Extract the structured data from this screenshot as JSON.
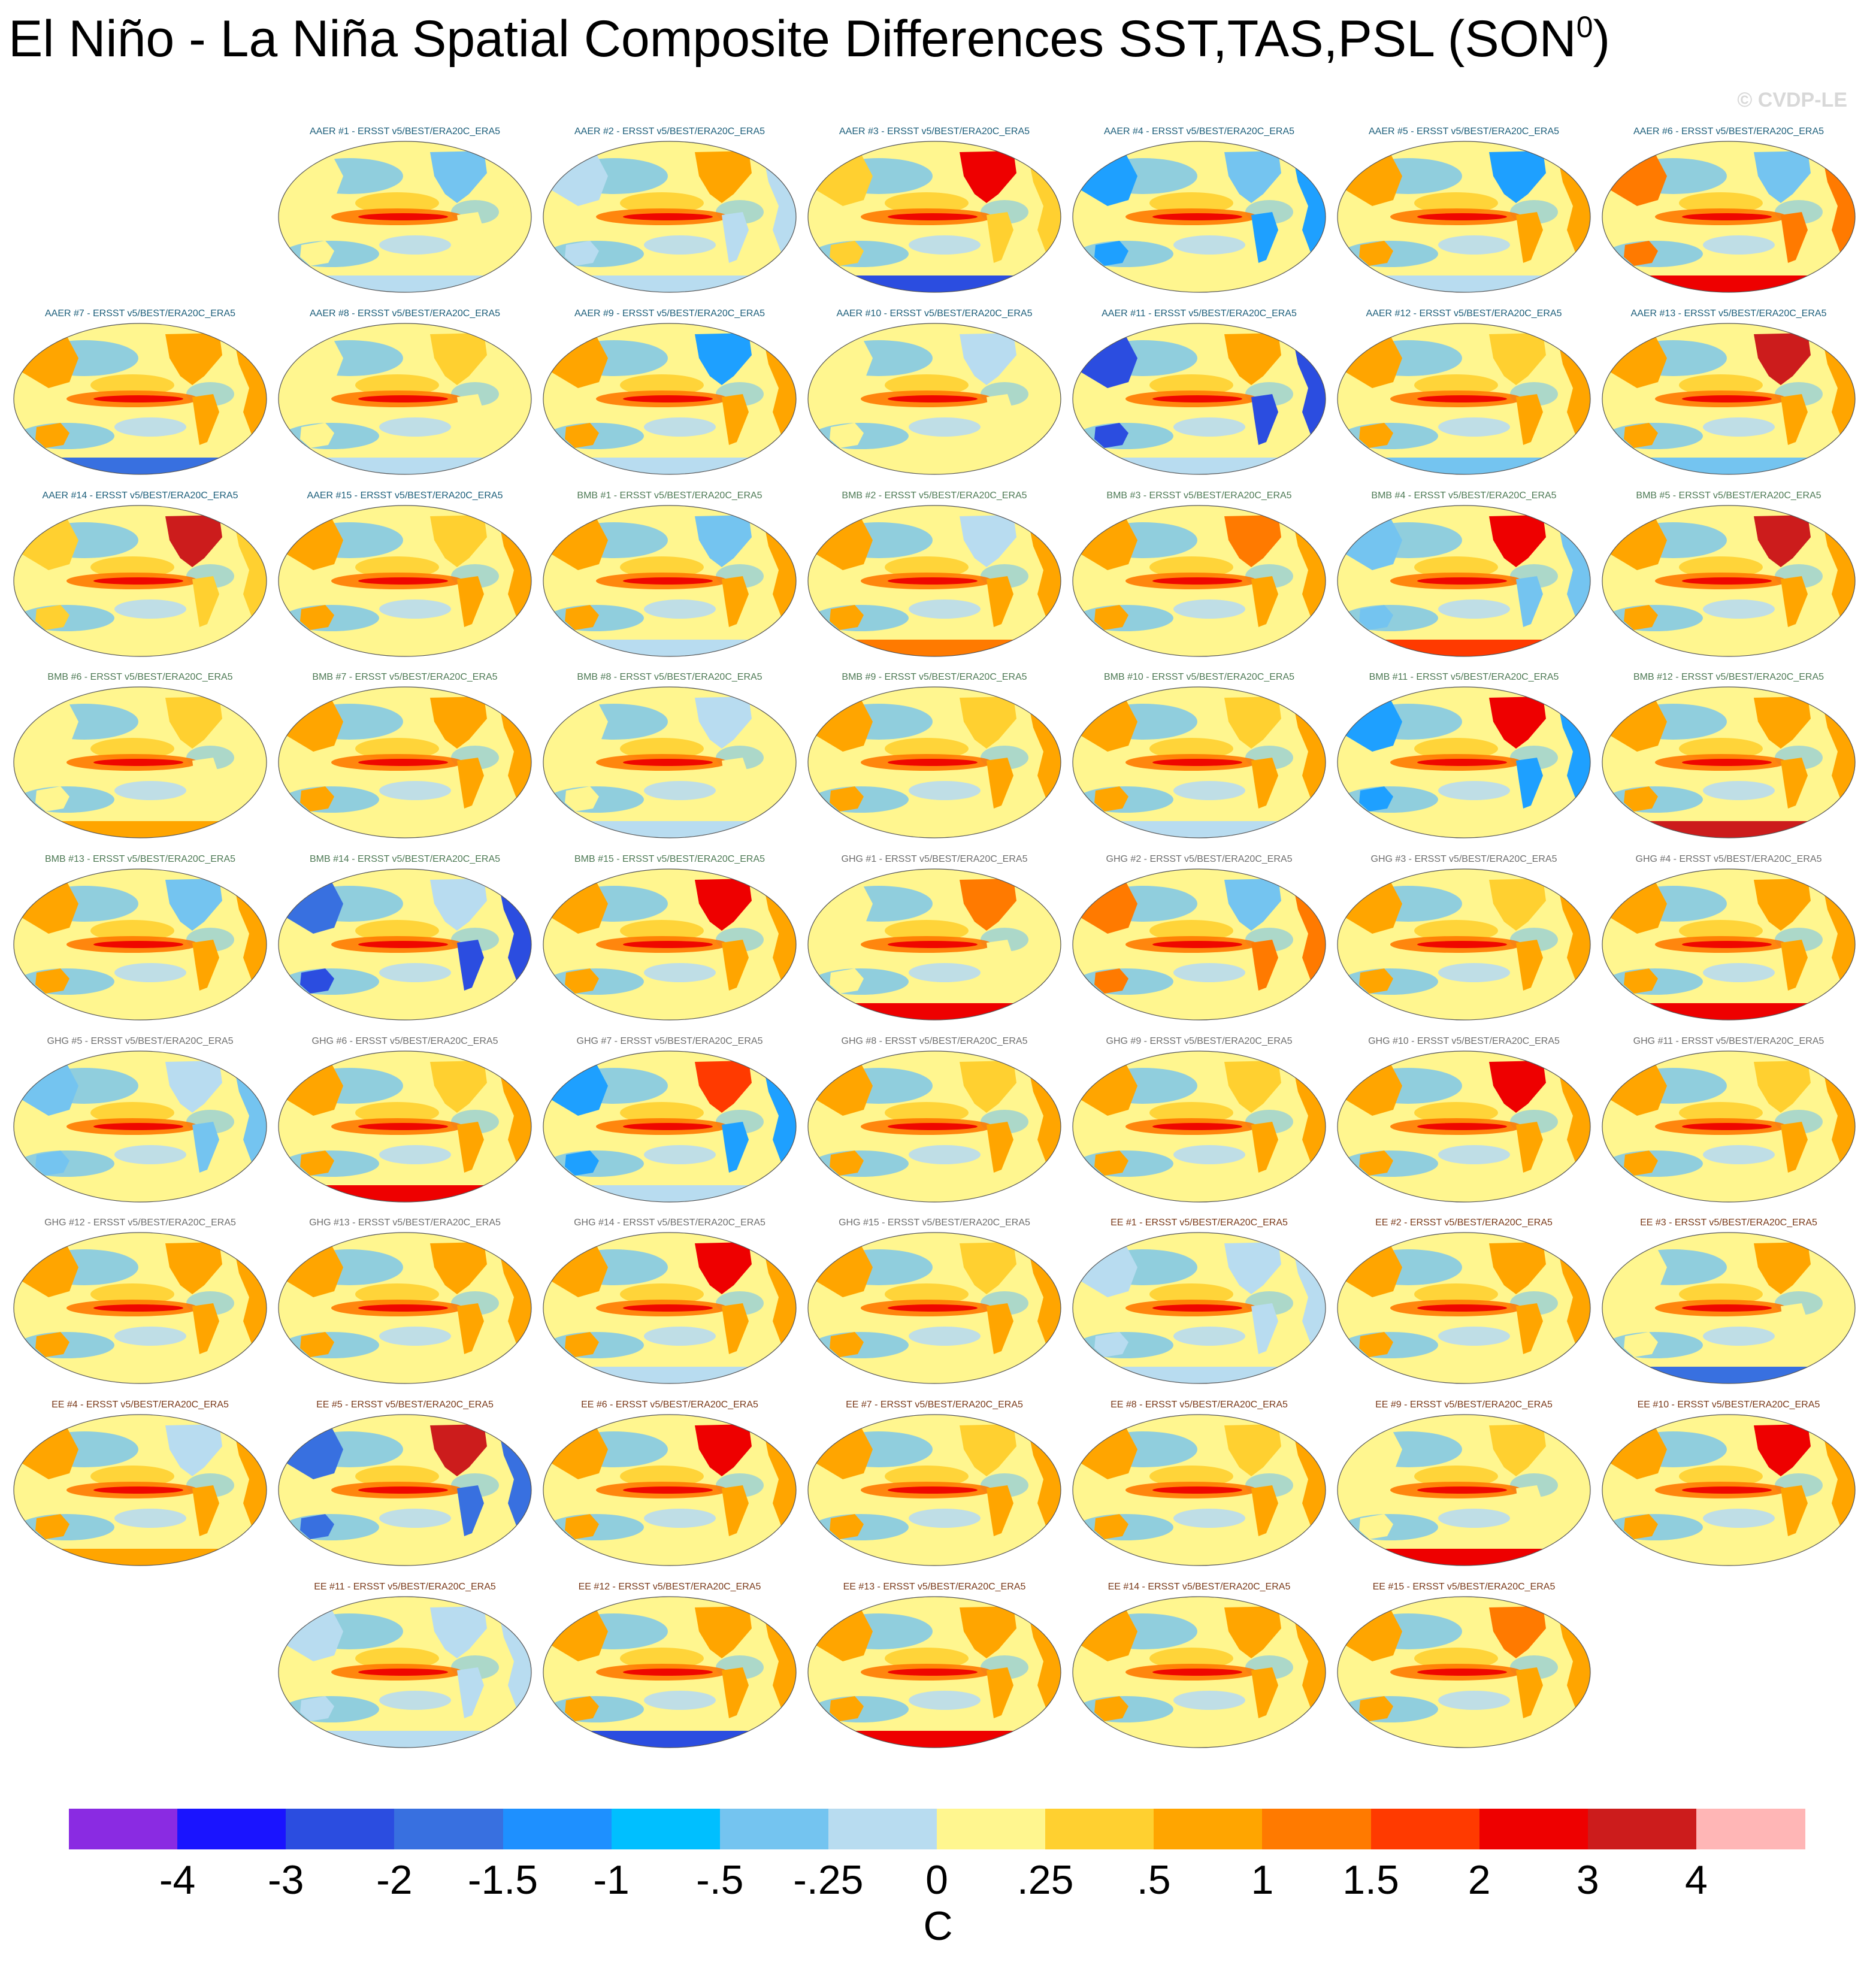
{
  "title": {
    "main": "El Niño - La Niña Spatial Composite Differences SST,TAS,PSL (SON",
    "superscript": "0",
    "close": ")"
  },
  "copyright": "© CVDP-LE",
  "group_colors": {
    "AAER": "#1c5e7a",
    "BMB": "#4e7a55",
    "GHG": "#6e6e6e",
    "EE": "#7a3a1a"
  },
  "panels": [
    {
      "label": "AAER #1 - ERSST v5/BEST/ERA20C_ERA5",
      "group": "AAER",
      "land": "#fff68f",
      "north": "#74c4f0",
      "south": "#b8dcf0",
      "asia": "#fff68f"
    },
    {
      "label": "AAER #2 - ERSST v5/BEST/ERA20C_ERA5",
      "group": "AAER",
      "land": "#b8dcf0",
      "north": "#ffa500",
      "south": "#b8dcf0",
      "asia": "#b8dcf0"
    },
    {
      "label": "AAER #3 - ERSST v5/BEST/ERA20C_ERA5",
      "group": "AAER",
      "land": "#ffd030",
      "north": "#ee0000",
      "south": "#2b4de0",
      "asia": "#ffd030"
    },
    {
      "label": "AAER #4 - ERSST v5/BEST/ERA20C_ERA5",
      "group": "AAER",
      "land": "#1ea0ff",
      "north": "#74c4f0",
      "south": "#fff68f",
      "asia": "#1ea0ff"
    },
    {
      "label": "AAER #5 - ERSST v5/BEST/ERA20C_ERA5",
      "group": "AAER",
      "land": "#ffa500",
      "north": "#1ea0ff",
      "south": "#b8dcf0",
      "asia": "#ffa500"
    },
    {
      "label": "AAER #6 - ERSST v5/BEST/ERA20C_ERA5",
      "group": "AAER",
      "land": "#ff7a00",
      "north": "#74c4f0",
      "south": "#ee0000",
      "asia": "#ff7a00"
    },
    {
      "label": "AAER #7 - ERSST v5/BEST/ERA20C_ERA5",
      "group": "AAER",
      "land": "#ffa500",
      "north": "#ffa500",
      "south": "#3870e0",
      "asia": "#ffa500"
    },
    {
      "label": "AAER #8 - ERSST v5/BEST/ERA20C_ERA5",
      "group": "AAER",
      "land": "#fff68f",
      "north": "#ffd030",
      "south": "#b8dcf0",
      "asia": "#fff68f"
    },
    {
      "label": "AAER #9 - ERSST v5/BEST/ERA20C_ERA5",
      "group": "AAER",
      "land": "#ffa500",
      "north": "#1ea0ff",
      "south": "#b8dcf0",
      "asia": "#ffa500"
    },
    {
      "label": "AAER #10 - ERSST v5/BEST/ERA20C_ERA5",
      "group": "AAER",
      "land": "#fff68f",
      "north": "#b8dcf0",
      "south": "#fff68f",
      "asia": "#fff68f"
    },
    {
      "label": "AAER #11 - ERSST v5/BEST/ERA20C_ERA5",
      "group": "AAER",
      "land": "#2b4de0",
      "north": "#ffa500",
      "south": "#b8dcf0",
      "asia": "#2b4de0"
    },
    {
      "label": "AAER #12 - ERSST v5/BEST/ERA20C_ERA5",
      "group": "AAER",
      "land": "#ffa500",
      "north": "#ffd030",
      "south": "#74c4f0",
      "asia": "#ffa500"
    },
    {
      "label": "AAER #13 - ERSST v5/BEST/ERA20C_ERA5",
      "group": "AAER",
      "land": "#ffa500",
      "north": "#cc1c1c",
      "south": "#74c4f0",
      "asia": "#ffa500"
    },
    {
      "label": "AAER #14 - ERSST v5/BEST/ERA20C_ERA5",
      "group": "AAER",
      "land": "#ffd030",
      "north": "#cc1c1c",
      "south": "#fff68f",
      "asia": "#ffd030"
    },
    {
      "label": "AAER #15 - ERSST v5/BEST/ERA20C_ERA5",
      "group": "AAER",
      "land": "#ffa500",
      "north": "#ffd030",
      "south": "#fff68f",
      "asia": "#ffa500"
    },
    {
      "label": "BMB #1 - ERSST v5/BEST/ERA20C_ERA5",
      "group": "BMB",
      "land": "#ffa500",
      "north": "#74c4f0",
      "south": "#b8dcf0",
      "asia": "#ffa500"
    },
    {
      "label": "BMB #2 - ERSST v5/BEST/ERA20C_ERA5",
      "group": "BMB",
      "land": "#ffa500",
      "north": "#b8dcf0",
      "south": "#ff7a00",
      "asia": "#ffa500"
    },
    {
      "label": "BMB #3 - ERSST v5/BEST/ERA20C_ERA5",
      "group": "BMB",
      "land": "#ffa500",
      "north": "#ff7a00",
      "south": "#fff68f",
      "asia": "#ffa500"
    },
    {
      "label": "BMB #4 - ERSST v5/BEST/ERA20C_ERA5",
      "group": "BMB",
      "land": "#74c4f0",
      "north": "#ee0000",
      "south": "#ff3a00",
      "asia": "#74c4f0"
    },
    {
      "label": "BMB #5 - ERSST v5/BEST/ERA20C_ERA5",
      "group": "BMB",
      "land": "#ffa500",
      "north": "#cc1c1c",
      "south": "#fff68f",
      "asia": "#ffa500"
    },
    {
      "label": "BMB #6 - ERSST v5/BEST/ERA20C_ERA5",
      "group": "BMB",
      "land": "#fff68f",
      "north": "#ffd030",
      "south": "#ffa500",
      "asia": "#fff68f"
    },
    {
      "label": "BMB #7 - ERSST v5/BEST/ERA20C_ERA5",
      "group": "BMB",
      "land": "#ffa500",
      "north": "#ffa500",
      "south": "#fff68f",
      "asia": "#ffa500"
    },
    {
      "label": "BMB #8 - ERSST v5/BEST/ERA20C_ERA5",
      "group": "BMB",
      "land": "#fff68f",
      "north": "#b8dcf0",
      "south": "#b8dcf0",
      "asia": "#fff68f"
    },
    {
      "label": "BMB #9 - ERSST v5/BEST/ERA20C_ERA5",
      "group": "BMB",
      "land": "#ffa500",
      "north": "#ffd030",
      "south": "#fff68f",
      "asia": "#ffa500"
    },
    {
      "label": "BMB #10 - ERSST v5/BEST/ERA20C_ERA5",
      "group": "BMB",
      "land": "#ffa500",
      "north": "#ffd030",
      "south": "#b8dcf0",
      "asia": "#ffa500"
    },
    {
      "label": "BMB #11 - ERSST v5/BEST/ERA20C_ERA5",
      "group": "BMB",
      "land": "#1ea0ff",
      "north": "#ee0000",
      "south": "#fff68f",
      "asia": "#1ea0ff"
    },
    {
      "label": "BMB #12 - ERSST v5/BEST/ERA20C_ERA5",
      "group": "BMB",
      "land": "#ffa500",
      "north": "#ffa500",
      "south": "#cc1c1c",
      "asia": "#ffa500"
    },
    {
      "label": "BMB #13 - ERSST v5/BEST/ERA20C_ERA5",
      "group": "BMB",
      "land": "#ffa500",
      "north": "#74c4f0",
      "south": "#fff68f",
      "asia": "#ffa500"
    },
    {
      "label": "BMB #14 - ERSST v5/BEST/ERA20C_ERA5",
      "group": "BMB",
      "land": "#2b4de0",
      "north": "#b8dcf0",
      "south": "#fff68f",
      "asia": "#3870e0"
    },
    {
      "label": "BMB #15 - ERSST v5/BEST/ERA20C_ERA5",
      "group": "BMB",
      "land": "#ffa500",
      "north": "#ee0000",
      "south": "#fff68f",
      "asia": "#ffa500"
    },
    {
      "label": "GHG #1 - ERSST v5/BEST/ERA20C_ERA5",
      "group": "GHG",
      "land": "#fff68f",
      "north": "#ff7a00",
      "south": "#ee0000",
      "asia": "#fff68f"
    },
    {
      "label": "GHG #2 - ERSST v5/BEST/ERA20C_ERA5",
      "group": "GHG",
      "land": "#ff7a00",
      "north": "#74c4f0",
      "south": "#fff68f",
      "asia": "#ff7a00"
    },
    {
      "label": "GHG #3 - ERSST v5/BEST/ERA20C_ERA5",
      "group": "GHG",
      "land": "#ffa500",
      "north": "#ffd030",
      "south": "#fff68f",
      "asia": "#ffa500"
    },
    {
      "label": "GHG #4 - ERSST v5/BEST/ERA20C_ERA5",
      "group": "GHG",
      "land": "#ffa500",
      "north": "#ffa500",
      "south": "#ee0000",
      "asia": "#ffa500"
    },
    {
      "label": "GHG #5 - ERSST v5/BEST/ERA20C_ERA5",
      "group": "GHG",
      "land": "#74c4f0",
      "north": "#b8dcf0",
      "south": "#fff68f",
      "asia": "#74c4f0"
    },
    {
      "label": "GHG #6 - ERSST v5/BEST/ERA20C_ERA5",
      "group": "GHG",
      "land": "#ffa500",
      "north": "#ffd030",
      "south": "#ee0000",
      "asia": "#ffa500"
    },
    {
      "label": "GHG #7 - ERSST v5/BEST/ERA20C_ERA5",
      "group": "GHG",
      "land": "#1ea0ff",
      "north": "#ff3a00",
      "south": "#b8dcf0",
      "asia": "#1ea0ff"
    },
    {
      "label": "GHG #8 - ERSST v5/BEST/ERA20C_ERA5",
      "group": "GHG",
      "land": "#ffa500",
      "north": "#ffd030",
      "south": "#fff68f",
      "asia": "#ffa500"
    },
    {
      "label": "GHG #9 - ERSST v5/BEST/ERA20C_ERA5",
      "group": "GHG",
      "land": "#ffa500",
      "north": "#ffd030",
      "south": "#fff68f",
      "asia": "#ffa500"
    },
    {
      "label": "GHG #10 - ERSST v5/BEST/ERA20C_ERA5",
      "group": "GHG",
      "land": "#ffa500",
      "north": "#ee0000",
      "south": "#fff68f",
      "asia": "#ffa500"
    },
    {
      "label": "GHG #11 - ERSST v5/BEST/ERA20C_ERA5",
      "group": "GHG",
      "land": "#ffa500",
      "north": "#ffd030",
      "south": "#fff68f",
      "asia": "#ffa500"
    },
    {
      "label": "GHG #12 - ERSST v5/BEST/ERA20C_ERA5",
      "group": "GHG",
      "land": "#ffa500",
      "north": "#ffa500",
      "south": "#fff68f",
      "asia": "#ffa500"
    },
    {
      "label": "GHG #13 - ERSST v5/BEST/ERA20C_ERA5",
      "group": "GHG",
      "land": "#ffa500",
      "north": "#ffa500",
      "south": "#fff68f",
      "asia": "#ffa500"
    },
    {
      "label": "GHG #14 - ERSST v5/BEST/ERA20C_ERA5",
      "group": "GHG",
      "land": "#ffa500",
      "north": "#ee0000",
      "south": "#b8dcf0",
      "asia": "#ffa500"
    },
    {
      "label": "GHG #15 - ERSST v5/BEST/ERA20C_ERA5",
      "group": "GHG",
      "land": "#ffa500",
      "north": "#ffd030",
      "south": "#fff68f",
      "asia": "#ffa500"
    },
    {
      "label": "EE #1 - ERSST v5/BEST/ERA20C_ERA5",
      "group": "EE",
      "land": "#b8dcf0",
      "north": "#b8dcf0",
      "south": "#b8dcf0",
      "asia": "#b8dcf0"
    },
    {
      "label": "EE #2 - ERSST v5/BEST/ERA20C_ERA5",
      "group": "EE",
      "land": "#ffa500",
      "north": "#ffa500",
      "south": "#fff68f",
      "asia": "#ffa500"
    },
    {
      "label": "EE #3 - ERSST v5/BEST/ERA20C_ERA5",
      "group": "EE",
      "land": "#fff68f",
      "north": "#ffa500",
      "south": "#3870e0",
      "asia": "#fff68f"
    },
    {
      "label": "EE #4 - ERSST v5/BEST/ERA20C_ERA5",
      "group": "EE",
      "land": "#ffa500",
      "north": "#b8dcf0",
      "south": "#ffa500",
      "asia": "#ffa500"
    },
    {
      "label": "EE #5 - ERSST v5/BEST/ERA20C_ERA5",
      "group": "EE",
      "land": "#3870e0",
      "north": "#cc1c1c",
      "south": "#fff68f",
      "asia": "#3870e0"
    },
    {
      "label": "EE #6 - ERSST v5/BEST/ERA20C_ERA5",
      "group": "EE",
      "land": "#ffa500",
      "north": "#ee0000",
      "south": "#fff68f",
      "asia": "#ffa500"
    },
    {
      "label": "EE #7 - ERSST v5/BEST/ERA20C_ERA5",
      "group": "EE",
      "land": "#ffa500",
      "north": "#ffd030",
      "south": "#fff68f",
      "asia": "#ffa500"
    },
    {
      "label": "EE #8 - ERSST v5/BEST/ERA20C_ERA5",
      "group": "EE",
      "land": "#ffa500",
      "north": "#ffd030",
      "south": "#fff68f",
      "asia": "#ffa500"
    },
    {
      "label": "EE #9 - ERSST v5/BEST/ERA20C_ERA5",
      "group": "EE",
      "land": "#fff68f",
      "north": "#ffd030",
      "south": "#ee0000",
      "asia": "#fff68f"
    },
    {
      "label": "EE #10 - ERSST v5/BEST/ERA20C_ERA5",
      "group": "EE",
      "land": "#ffa500",
      "north": "#ee0000",
      "south": "#fff68f",
      "asia": "#ffa500"
    },
    {
      "label": "EE #11 - ERSST v5/BEST/ERA20C_ERA5",
      "group": "EE",
      "land": "#b8dcf0",
      "north": "#b8dcf0",
      "south": "#b8dcf0",
      "asia": "#b8dcf0"
    },
    {
      "label": "EE #12 - ERSST v5/BEST/ERA20C_ERA5",
      "group": "EE",
      "land": "#ffa500",
      "north": "#ffa500",
      "south": "#2b4de0",
      "asia": "#ffa500"
    },
    {
      "label": "EE #13 - ERSST v5/BEST/ERA20C_ERA5",
      "group": "EE",
      "land": "#ffa500",
      "north": "#ffa500",
      "south": "#ee0000",
      "asia": "#ffa500"
    },
    {
      "label": "EE #14 - ERSST v5/BEST/ERA20C_ERA5",
      "group": "EE",
      "land": "#ffa500",
      "north": "#ffa500",
      "south": "#fff68f",
      "asia": "#ffa500"
    },
    {
      "label": "EE #15 - ERSST v5/BEST/ERA20C_ERA5",
      "group": "EE",
      "land": "#ffa500",
      "north": "#ff7a00",
      "south": "#fff68f",
      "asia": "#ffa500"
    }
  ],
  "colorbar": {
    "colors": [
      "#8a2be2",
      "#1a14ff",
      "#2b4de0",
      "#3870e0",
      "#1e90ff",
      "#00bfff",
      "#74c4f0",
      "#b8dcf0",
      "#fff68f",
      "#ffd030",
      "#ffa500",
      "#ff7a00",
      "#ff3a00",
      "#ee0000",
      "#cc1c1c",
      "#ffb6b6"
    ],
    "ticks": [
      "-4",
      "-3",
      "-2",
      "-1.5",
      "-1",
      "-.5",
      "-.25",
      "0",
      ".25",
      ".5",
      "1",
      "1.5",
      "2",
      "3",
      "4"
    ],
    "units": "C"
  }
}
